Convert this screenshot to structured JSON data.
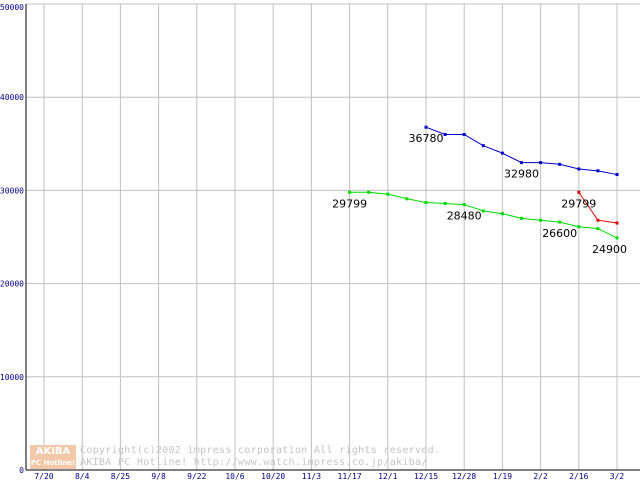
{
  "chart_data": {
    "type": "line",
    "x": [
      "7/20",
      "8/4",
      "8/25",
      "9/8",
      "9/22",
      "10/6",
      "10/20",
      "11/3",
      "11/17",
      "12/1",
      "12/15",
      "12/28",
      "1/19",
      "2/2",
      "2/16",
      "3/2"
    ],
    "ylim": [
      0,
      50000
    ],
    "yticks": [
      0,
      10000,
      20000,
      30000,
      40000,
      50000
    ],
    "grid": true,
    "series": [
      {
        "color": "#0000c8",
        "points": [
          {
            "x": 10.0,
            "y": 36780
          },
          {
            "x": 10.5,
            "y": 36000
          },
          {
            "x": 11.0,
            "y": 36000
          },
          {
            "x": 11.5,
            "y": 34800
          },
          {
            "x": 12.0,
            "y": 34000
          },
          {
            "x": 12.5,
            "y": 32980
          },
          {
            "x": 13.0,
            "y": 32980
          },
          {
            "x": 13.5,
            "y": 32800
          },
          {
            "x": 14.0,
            "y": 32300
          },
          {
            "x": 14.5,
            "y": 32100
          },
          {
            "x": 15.0,
            "y": 31700
          }
        ]
      },
      {
        "color": "#00dc00",
        "points": [
          {
            "x": 8.0,
            "y": 29799
          },
          {
            "x": 8.5,
            "y": 29799
          },
          {
            "x": 9.0,
            "y": 29600
          },
          {
            "x": 9.5,
            "y": 29100
          },
          {
            "x": 10.0,
            "y": 28700
          },
          {
            "x": 10.5,
            "y": 28600
          },
          {
            "x": 11.0,
            "y": 28480
          },
          {
            "x": 11.5,
            "y": 27800
          },
          {
            "x": 12.0,
            "y": 27500
          },
          {
            "x": 12.5,
            "y": 27000
          },
          {
            "x": 13.0,
            "y": 26800
          },
          {
            "x": 13.5,
            "y": 26600
          },
          {
            "x": 14.0,
            "y": 26100
          },
          {
            "x": 14.5,
            "y": 25900
          },
          {
            "x": 15.0,
            "y": 24900
          }
        ]
      },
      {
        "color": "#dc0000",
        "points": [
          {
            "x": 14.0,
            "y": 29799
          },
          {
            "x": 14.5,
            "y": 26800
          },
          {
            "x": 15.0,
            "y": 26500
          }
        ]
      }
    ],
    "annotations": [
      {
        "text": "36780",
        "x": 10.0,
        "y": 36780
      },
      {
        "text": "32980",
        "x": 12.5,
        "y": 32980
      },
      {
        "text": "29799",
        "x": 8.0,
        "y": 29799
      },
      {
        "text": "28480",
        "x": 11.0,
        "y": 28480
      },
      {
        "text": "26600",
        "x": 13.5,
        "y": 26600
      },
      {
        "text": "29799",
        "x": 14.0,
        "y": 29799
      },
      {
        "text": "24900",
        "x": 15.0,
        "y": 24900
      }
    ]
  },
  "watermark": {
    "logo_top": "AKIBA",
    "logo_bottom": "PC Hotline!",
    "line1": "Copyright(c)2002 impress corporation All rights reserved.",
    "line2": "AKIBA PC Hotline! http://www.watch.impress.co.jp/akiba/"
  }
}
